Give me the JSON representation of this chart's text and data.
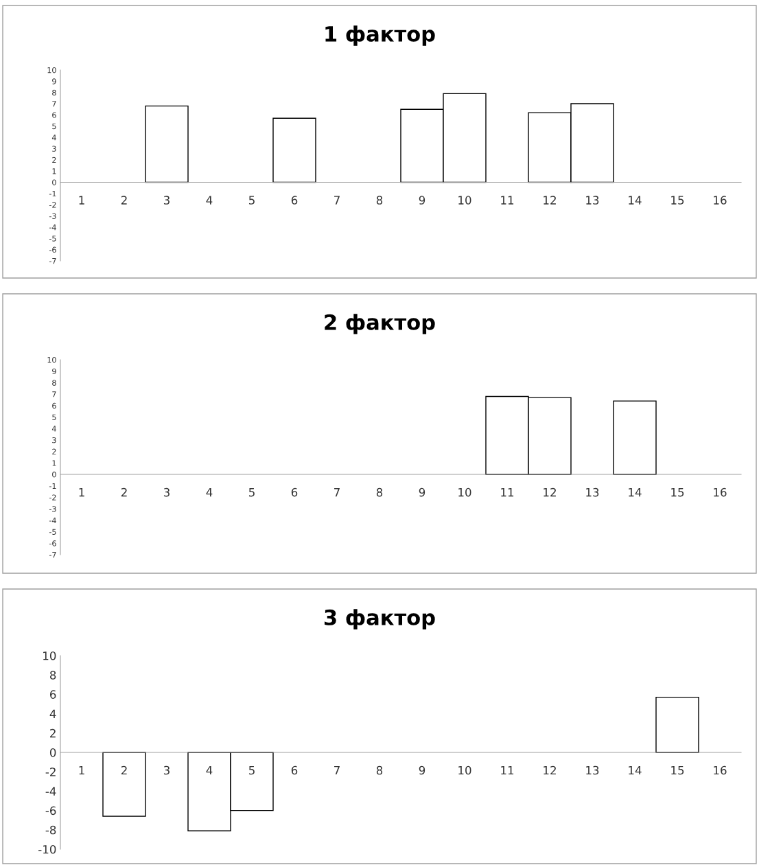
{
  "chart_data": [
    {
      "type": "bar",
      "title": "1 фактор",
      "categories": [
        "1",
        "2",
        "3",
        "4",
        "5",
        "6",
        "7",
        "8",
        "9",
        "10",
        "11",
        "12",
        "13",
        "14",
        "15",
        "16"
      ],
      "series": [
        {
          "color": "#ffffff",
          "values": [
            null,
            null,
            6.8,
            null,
            null,
            5.7,
            null,
            null,
            6.5,
            7.9,
            null,
            6.2,
            7.0,
            null,
            null,
            null
          ]
        }
      ],
      "ylim": [
        -7,
        10
      ],
      "yticks": [
        -7,
        -6,
        -5,
        -4,
        -3,
        -2,
        -1,
        0,
        1,
        2,
        3,
        4,
        5,
        6,
        7,
        8,
        9,
        10
      ],
      "grid": false
    },
    {
      "type": "bar",
      "title": "2 фактор",
      "categories": [
        "1",
        "2",
        "3",
        "4",
        "5",
        "6",
        "7",
        "8",
        "9",
        "10",
        "11",
        "12",
        "13",
        "14",
        "15",
        "16"
      ],
      "series": [
        {
          "color": "#ffffff",
          "values": [
            null,
            null,
            null,
            null,
            null,
            null,
            null,
            null,
            null,
            null,
            6.8,
            6.7,
            null,
            6.4,
            null,
            null
          ]
        }
      ],
      "ylim": [
        -7,
        10
      ],
      "yticks": [
        -7,
        -6,
        -5,
        -4,
        -3,
        -2,
        -1,
        0,
        1,
        2,
        3,
        4,
        5,
        6,
        7,
        8,
        9,
        10
      ],
      "grid": false
    },
    {
      "type": "bar",
      "title": "3 фактор",
      "categories": [
        "1",
        "2",
        "3",
        "4",
        "5",
        "6",
        "7",
        "8",
        "9",
        "10",
        "11",
        "12",
        "13",
        "14",
        "15",
        "16"
      ],
      "series": [
        {
          "color": "#ffffff",
          "values": [
            null,
            -6.6,
            null,
            -8.1,
            -6.0,
            null,
            null,
            null,
            null,
            null,
            null,
            null,
            null,
            null,
            5.7,
            null
          ]
        }
      ],
      "ylim": [
        -10,
        10
      ],
      "yticks": [
        -10,
        -8,
        -6,
        -4,
        -2,
        0,
        2,
        4,
        6,
        8,
        10
      ],
      "grid": false
    }
  ]
}
